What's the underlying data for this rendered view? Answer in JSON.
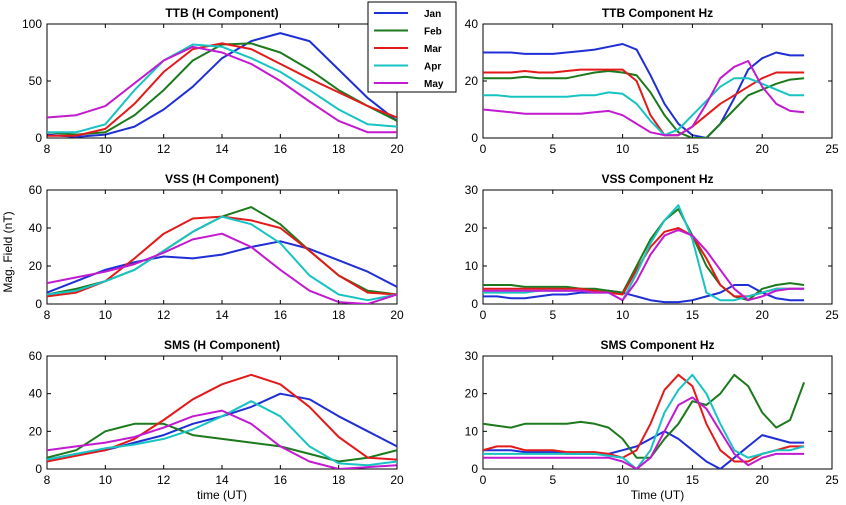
{
  "figure": {
    "ylabel": "Mag. Field (nT)",
    "legend": [
      "Jan",
      "Feb",
      "Mar",
      "Apr",
      "May"
    ],
    "colors": {
      "Jan": "#1f2fd6",
      "Feb": "#1c7a1c",
      "Mar": "#e41a1a",
      "Apr": "#17c3c3",
      "May": "#c21ad0"
    }
  },
  "chart_data": [
    {
      "id": "ttb-h",
      "type": "line",
      "title": "TTB (H Component)",
      "xlabel": "",
      "ylabel": "",
      "xlim": [
        8,
        20
      ],
      "ylim": [
        0,
        100
      ],
      "xticks": [
        8,
        10,
        12,
        14,
        16,
        18,
        20
      ],
      "yticks": [
        0,
        50,
        100
      ],
      "x": [
        8,
        9,
        10,
        11,
        12,
        13,
        14,
        15,
        16,
        17,
        18,
        19,
        20
      ],
      "series": [
        {
          "name": "Jan",
          "values": [
            3,
            1,
            3,
            10,
            25,
            45,
            70,
            85,
            92,
            85,
            60,
            35,
            15
          ]
        },
        {
          "name": "Feb",
          "values": [
            5,
            3,
            5,
            20,
            42,
            68,
            82,
            83,
            75,
            60,
            42,
            28,
            15
          ]
        },
        {
          "name": "Mar",
          "values": [
            2,
            2,
            8,
            30,
            58,
            78,
            83,
            78,
            65,
            52,
            40,
            28,
            18
          ]
        },
        {
          "name": "Apr",
          "values": [
            5,
            5,
            12,
            42,
            68,
            82,
            80,
            70,
            58,
            42,
            25,
            12,
            10
          ]
        },
        {
          "name": "May",
          "values": [
            18,
            20,
            28,
            48,
            68,
            80,
            75,
            65,
            50,
            32,
            15,
            5,
            5
          ]
        }
      ]
    },
    {
      "id": "ttb-z",
      "type": "line",
      "title": "TTB Component Hz",
      "xlabel": "",
      "ylabel": "",
      "xlim": [
        0,
        25
      ],
      "ylim": [
        0,
        40
      ],
      "xticks": [
        0,
        5,
        10,
        15,
        20,
        25
      ],
      "yticks": [
        0,
        20,
        40
      ],
      "x": [
        0,
        1,
        2,
        3,
        4,
        5,
        6,
        7,
        8,
        9,
        10,
        11,
        12,
        13,
        14,
        15,
        16,
        17,
        18,
        19,
        20,
        21,
        22,
        23
      ],
      "series": [
        {
          "name": "Jan",
          "values": [
            30,
            30,
            30,
            29.5,
            29.5,
            29.5,
            30,
            30.5,
            31,
            32,
            33,
            31,
            22,
            12,
            5,
            1,
            0,
            5,
            14,
            24,
            28,
            30,
            29,
            29
          ]
        },
        {
          "name": "Feb",
          "values": [
            21,
            21,
            21,
            21.5,
            21,
            21,
            21,
            22,
            23,
            23.5,
            23,
            22,
            16,
            8,
            2,
            0,
            0,
            5,
            10,
            15,
            17,
            19,
            20.5,
            21
          ]
        },
        {
          "name": "Mar",
          "values": [
            23,
            23,
            23,
            23.5,
            23,
            23,
            23.5,
            24,
            24,
            24,
            24,
            20,
            8,
            1,
            1,
            4,
            8,
            12,
            15,
            18,
            21,
            23,
            23,
            23
          ]
        },
        {
          "name": "Apr",
          "values": [
            15,
            15,
            14.5,
            14.5,
            14.5,
            14.5,
            14.5,
            15,
            15,
            16,
            15.5,
            12,
            6,
            1,
            3,
            8,
            13,
            18,
            21,
            21,
            19,
            17,
            15,
            15
          ]
        },
        {
          "name": "May",
          "values": [
            10,
            9.5,
            9,
            8.5,
            8.5,
            8.5,
            8.5,
            8.5,
            9,
            9.5,
            8,
            5,
            2,
            1,
            1,
            4,
            12,
            21,
            25,
            27,
            18,
            12,
            9.5,
            9
          ]
        }
      ]
    },
    {
      "id": "vss-h",
      "type": "line",
      "title": "VSS (H Component)",
      "xlabel": "",
      "ylabel": "Mag. Field (nT)",
      "xlim": [
        8,
        20
      ],
      "ylim": [
        0,
        60
      ],
      "xticks": [
        8,
        10,
        12,
        14,
        16,
        18,
        20
      ],
      "yticks": [
        0,
        20,
        40,
        60
      ],
      "x": [
        8,
        9,
        10,
        11,
        12,
        13,
        14,
        15,
        16,
        17,
        18,
        19,
        20
      ],
      "series": [
        {
          "name": "Jan",
          "values": [
            6,
            12,
            18,
            22,
            25,
            24,
            26,
            30,
            33,
            29,
            23,
            17,
            9
          ]
        },
        {
          "name": "Feb",
          "values": [
            5,
            8,
            12,
            18,
            28,
            38,
            46,
            51,
            42,
            28,
            15,
            7,
            5
          ]
        },
        {
          "name": "Mar",
          "values": [
            4,
            6,
            12,
            24,
            37,
            45,
            46,
            44,
            40,
            28,
            15,
            6,
            5
          ]
        },
        {
          "name": "Apr",
          "values": [
            5,
            7,
            12,
            18,
            28,
            38,
            46,
            42,
            32,
            15,
            5,
            2,
            5
          ]
        },
        {
          "name": "May",
          "values": [
            11,
            14,
            17,
            21,
            27,
            34,
            37,
            30,
            18,
            7,
            1,
            0,
            5
          ]
        }
      ]
    },
    {
      "id": "vss-z",
      "type": "line",
      "title": "VSS Component Hz",
      "xlabel": "",
      "ylabel": "",
      "xlim": [
        0,
        25
      ],
      "ylim": [
        0,
        30
      ],
      "xticks": [
        0,
        5,
        10,
        15,
        20,
        25
      ],
      "yticks": [
        0,
        10,
        20,
        30
      ],
      "x": [
        0,
        1,
        2,
        3,
        4,
        5,
        6,
        7,
        8,
        9,
        10,
        11,
        12,
        13,
        14,
        15,
        16,
        17,
        18,
        19,
        20,
        21,
        22,
        23
      ],
      "series": [
        {
          "name": "Jan",
          "values": [
            2,
            2,
            1.5,
            1.5,
            2,
            2.5,
            2.5,
            3,
            3,
            3.5,
            3,
            2,
            1,
            0.5,
            0.5,
            1,
            2,
            3,
            5,
            5,
            3,
            1.5,
            1,
            1
          ]
        },
        {
          "name": "Feb",
          "values": [
            5,
            5,
            5,
            4.5,
            4.5,
            4.5,
            4.5,
            4,
            4,
            3.5,
            3,
            10,
            17,
            22,
            25,
            18,
            10,
            5,
            2,
            1,
            4,
            5,
            5.5,
            5
          ]
        },
        {
          "name": "Mar",
          "values": [
            4,
            4,
            4,
            4,
            4,
            4,
            4,
            4,
            3.5,
            3,
            2.5,
            9,
            15,
            19,
            20,
            18,
            12,
            5,
            2,
            2,
            3,
            4,
            4,
            4
          ]
        },
        {
          "name": "Apr",
          "values": [
            3,
            3,
            3,
            3,
            3.5,
            3.5,
            3.5,
            3.5,
            3,
            3,
            1,
            8,
            16,
            22,
            26,
            17,
            3,
            1,
            1,
            2,
            3,
            4,
            4,
            4
          ]
        },
        {
          "name": "May",
          "values": [
            3.5,
            3.5,
            3.5,
            3.5,
            3.5,
            3.5,
            3.5,
            3.5,
            3,
            3,
            1,
            6,
            13,
            18,
            19.5,
            18,
            14,
            9,
            4,
            1,
            2,
            3.5,
            4,
            4
          ]
        }
      ]
    },
    {
      "id": "sms-h",
      "type": "line",
      "title": "SMS (H Component)",
      "xlabel": "time (UT)",
      "ylabel": "",
      "xlim": [
        8,
        20
      ],
      "ylim": [
        0,
        60
      ],
      "xticks": [
        8,
        10,
        12,
        14,
        16,
        18,
        20
      ],
      "yticks": [
        0,
        20,
        40,
        60
      ],
      "x": [
        8,
        9,
        10,
        11,
        12,
        13,
        14,
        15,
        16,
        17,
        18,
        19,
        20
      ],
      "series": [
        {
          "name": "Jan",
          "values": [
            5,
            8,
            10,
            14,
            18,
            24,
            28,
            33,
            40,
            37,
            28,
            20,
            12
          ]
        },
        {
          "name": "Feb",
          "values": [
            6,
            10,
            20,
            24,
            24,
            18,
            16,
            14,
            12,
            8,
            4,
            6,
            10
          ]
        },
        {
          "name": "Mar",
          "values": [
            4,
            7,
            10,
            16,
            26,
            37,
            45,
            50,
            45,
            33,
            17,
            6,
            5
          ]
        },
        {
          "name": "Apr",
          "values": [
            5,
            8,
            11,
            13,
            16,
            21,
            28,
            36,
            28,
            12,
            3,
            2,
            4
          ]
        },
        {
          "name": "May",
          "values": [
            10,
            12,
            14,
            17,
            22,
            28,
            31,
            24,
            12,
            4,
            0,
            1,
            2
          ]
        }
      ]
    },
    {
      "id": "sms-z",
      "type": "line",
      "title": "SMS Component Hz",
      "xlabel": "Time (UT)",
      "ylabel": "",
      "xlim": [
        0,
        25
      ],
      "ylim": [
        0,
        30
      ],
      "xticks": [
        0,
        5,
        10,
        15,
        20,
        25
      ],
      "yticks": [
        0,
        10,
        20,
        30
      ],
      "x": [
        0,
        1,
        2,
        3,
        4,
        5,
        6,
        7,
        8,
        9,
        10,
        11,
        12,
        13,
        14,
        15,
        16,
        17,
        18,
        19,
        20,
        21,
        22,
        23
      ],
      "series": [
        {
          "name": "Jan",
          "values": [
            5,
            5,
            5,
            4.5,
            4.5,
            4.5,
            4,
            4,
            4,
            4,
            5,
            6,
            8,
            10,
            8,
            5,
            2,
            0,
            3,
            6,
            9,
            8,
            7,
            7
          ]
        },
        {
          "name": "Feb",
          "values": [
            12,
            11.5,
            11,
            12,
            12,
            12,
            12,
            12.5,
            12,
            11,
            8,
            3,
            3,
            8,
            12,
            18,
            17,
            20,
            25,
            22,
            15,
            11,
            13,
            23
          ]
        },
        {
          "name": "Mar",
          "values": [
            5,
            6,
            6,
            5,
            5,
            5,
            4.5,
            4.5,
            4.5,
            4,
            3,
            5,
            12,
            21,
            25,
            22,
            12,
            5,
            2,
            2,
            4,
            5,
            6,
            6
          ]
        },
        {
          "name": "Apr",
          "values": [
            4,
            4,
            4,
            4,
            4,
            4,
            4,
            4,
            4,
            3.5,
            3,
            0,
            5,
            15,
            21,
            25,
            20,
            12,
            5,
            3,
            4,
            5,
            5,
            6
          ]
        },
        {
          "name": "May",
          "values": [
            3,
            3,
            3,
            3,
            3,
            3,
            3,
            3,
            3,
            3,
            2,
            0,
            3,
            10,
            17,
            19,
            16,
            10,
            4,
            1,
            3,
            4,
            4,
            4
          ]
        }
      ]
    }
  ]
}
